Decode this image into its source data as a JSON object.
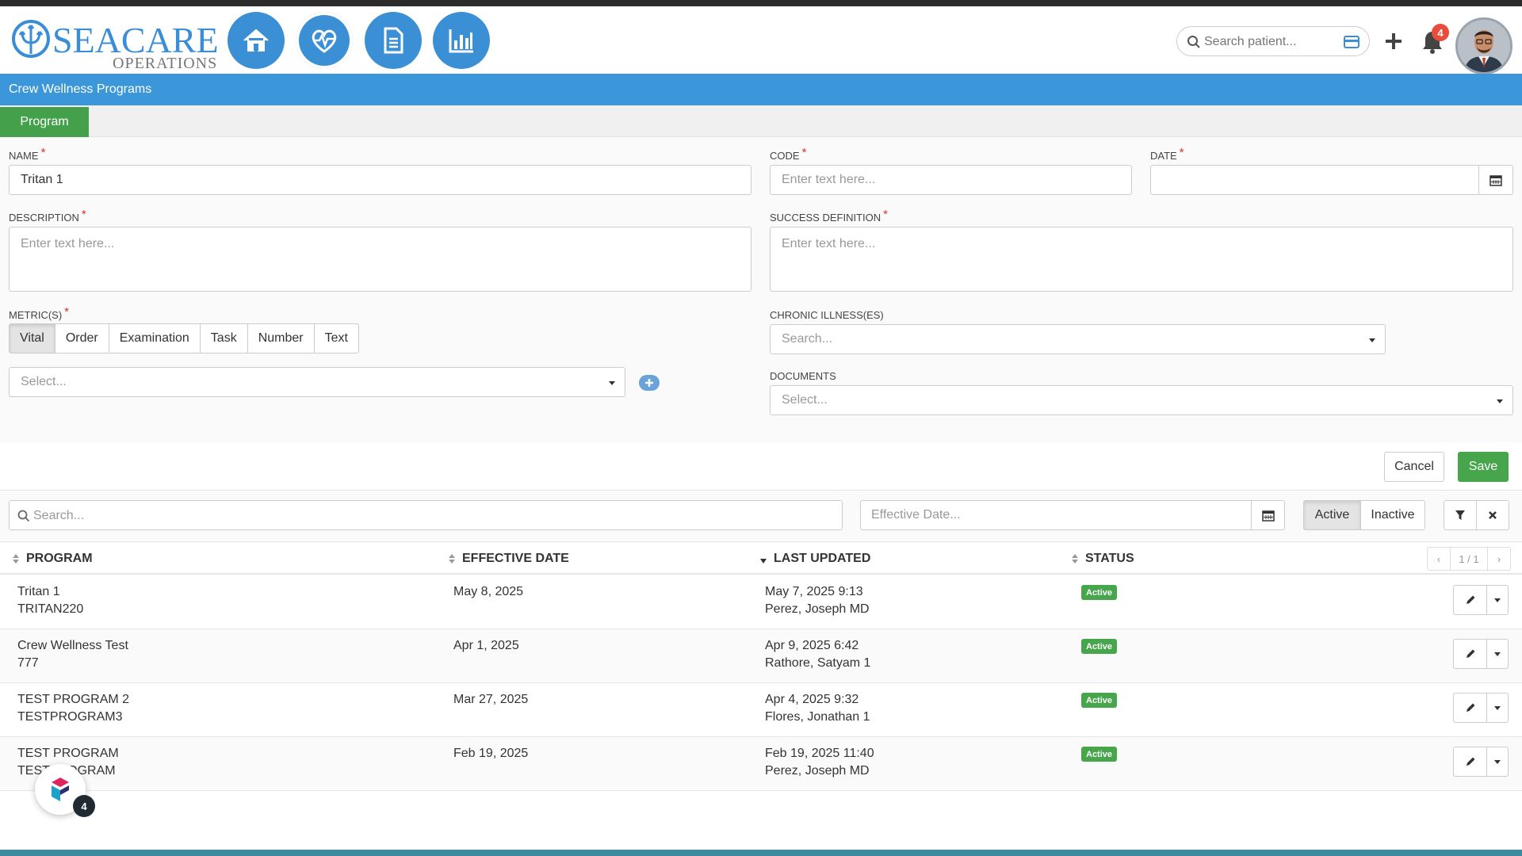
{
  "brand": {
    "title": "SEACARE",
    "subtitle": "OPERATIONS",
    "accent": "#3b8fd5"
  },
  "header": {
    "nav": [
      {
        "icon": "home-icon"
      },
      {
        "icon": "heartbeat-icon"
      },
      {
        "icon": "document-icon"
      },
      {
        "icon": "bar-chart-icon"
      }
    ],
    "search_placeholder": "Search patient...",
    "notifications_count": "4"
  },
  "page": {
    "title": "Crew Wellness Programs",
    "tab": "Program"
  },
  "form": {
    "name_label": "NAME",
    "name_value": "Tritan 1",
    "code_label": "CODE",
    "code_placeholder": "Enter text here...",
    "date_label": "DATE",
    "description_label": "DESCRIPTION",
    "description_placeholder": "Enter text here...",
    "success_label": "SUCCESS DEFINITION",
    "success_placeholder": "Enter text here...",
    "metrics_label": "METRIC(S)",
    "metrics": [
      "Vital",
      "Order",
      "Examination",
      "Task",
      "Number",
      "Text"
    ],
    "metrics_selected": "Vital",
    "metric_select_placeholder": "Select...",
    "chronic_label": "CHRONIC ILLNESS(ES)",
    "chronic_placeholder": "Search...",
    "documents_label": "DOCUMENTS",
    "documents_placeholder": "Select...",
    "required_mark": "*",
    "cancel_label": "Cancel",
    "save_label": "Save"
  },
  "filters": {
    "search_placeholder": "Search...",
    "date_placeholder": "Effective Date...",
    "active_label": "Active",
    "inactive_label": "Inactive"
  },
  "table": {
    "columns": [
      "PROGRAM",
      "EFFECTIVE DATE",
      "LAST UPDATED",
      "STATUS"
    ],
    "pager": "1 / 1",
    "rows": [
      {
        "program": "Tritan 1",
        "code": "TRITAN220",
        "effective": "May 8, 2025",
        "updated": "May 7, 2025 9:13",
        "by": "Perez, Joseph MD",
        "status": "Active"
      },
      {
        "program": "Crew Wellness Test",
        "code": "777",
        "effective": "Apr 1, 2025",
        "updated": "Apr 9, 2025 6:42",
        "by": "Rathore, Satyam 1",
        "status": "Active"
      },
      {
        "program": "TEST PROGRAM 2",
        "code": "TESTPROGRAM3",
        "effective": "Mar 27, 2025",
        "updated": "Apr 4, 2025 9:32",
        "by": "Flores, Jonathan 1",
        "status": "Active"
      },
      {
        "program": "TEST PROGRAM",
        "code": "TESTPROGRAM",
        "effective": "Feb 19, 2025",
        "updated": "Feb 19, 2025 11:40",
        "by": "Perez, Joseph MD",
        "status": "Active"
      }
    ]
  },
  "widget": {
    "badge": "4"
  }
}
